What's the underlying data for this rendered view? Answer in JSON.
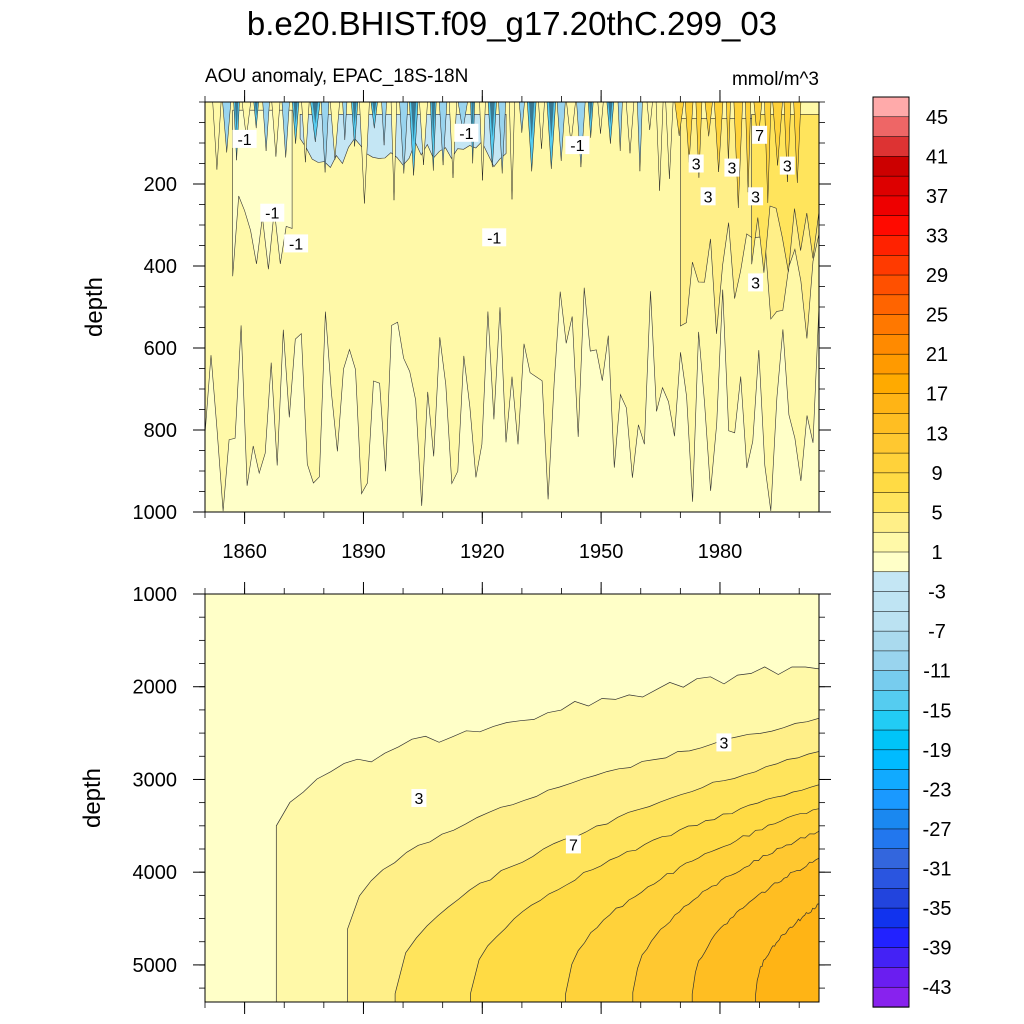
{
  "chart_data": {
    "type": "heatmap",
    "title": "b.e20.BHIST.f09_g17.20thC.299_03",
    "subtitle_left": "AOU anomaly, EPAC_18S-18N",
    "units": "mmol/m^3",
    "xlabel": "",
    "x_range": [
      1850,
      2005
    ],
    "x_ticks": [
      1860,
      1890,
      1920,
      1950,
      1980
    ],
    "x_tick_labels": [
      "1860",
      "1890",
      "1920",
      "1950",
      "1980"
    ],
    "panels": [
      {
        "name": "upper",
        "ylabel": "depth",
        "ylim": [
          0,
          1000
        ],
        "y_ticks": [
          200,
          400,
          600,
          800,
          1000
        ],
        "y_tick_labels": [
          "200",
          "400",
          "600",
          "800",
          "1000"
        ],
        "regions": [
          {
            "level_min": 1,
            "level_max": 3,
            "depth_top": 0,
            "depth_bottom": 1000,
            "year_start": 1850,
            "year_end": 2005
          },
          {
            "level_min": -1,
            "level_max": 1,
            "depth_top": 20,
            "depth_bottom": 440,
            "year_start": 1857,
            "year_end": 1872
          },
          {
            "level_min": -3,
            "level_max": -1,
            "depth_top": 30,
            "depth_bottom": 160,
            "year_start": 1874,
            "year_end": 1926
          },
          {
            "level_min": 3,
            "level_max": 5,
            "depth_top": 40,
            "depth_bottom": 600,
            "year_start": 1970,
            "year_end": 2005
          },
          {
            "level_min": 5,
            "level_max": 7,
            "depth_top": 30,
            "depth_bottom": 420,
            "year_start": 1988,
            "year_end": 2005
          }
        ],
        "contour_labels": [
          {
            "text": "-1",
            "year": 1860,
            "depth": 90
          },
          {
            "text": "-1",
            "year": 1867,
            "depth": 270
          },
          {
            "text": "-1",
            "year": 1873,
            "depth": 345
          },
          {
            "text": "-1",
            "year": 1916,
            "depth": 75
          },
          {
            "text": "-1",
            "year": 1923,
            "depth": 330
          },
          {
            "text": "-1",
            "year": 1944,
            "depth": 105
          },
          {
            "text": "3",
            "year": 1974,
            "depth": 150
          },
          {
            "text": "3",
            "year": 1977,
            "depth": 230
          },
          {
            "text": "3",
            "year": 1983,
            "depth": 160
          },
          {
            "text": "3",
            "year": 1989,
            "depth": 230
          },
          {
            "text": "7",
            "year": 1990,
            "depth": 80
          },
          {
            "text": "3",
            "year": 1997,
            "depth": 155
          },
          {
            "text": "3",
            "year": 1989,
            "depth": 440
          }
        ]
      },
      {
        "name": "lower",
        "ylabel": "depth",
        "ylim": [
          1000,
          5400
        ],
        "y_ticks": [
          1000,
          2000,
          3000,
          4000,
          5000
        ],
        "y_tick_labels": [
          "1000",
          "2000",
          "3000",
          "4000",
          "5000"
        ],
        "contour_bands": [
          {
            "level_min": 1,
            "level_max": 3,
            "onset_year": 1868,
            "surface_depth_start": 3500,
            "surface_depth_end": 1750
          },
          {
            "level_min": 3,
            "level_max": 5,
            "onset_year": 1886,
            "surface_depth_start": 4600,
            "surface_depth_end": 2350
          },
          {
            "level_min": 5,
            "level_max": 7,
            "onset_year": 1898,
            "surface_depth_start": 5300,
            "surface_depth_end": 2700
          },
          {
            "level_min": 7,
            "level_max": 9,
            "onset_year": 1917,
            "surface_depth_start": 5300,
            "surface_depth_end": 3050
          },
          {
            "level_min": 9,
            "level_max": 11,
            "onset_year": 1941,
            "surface_depth_start": 5300,
            "surface_depth_end": 3300
          },
          {
            "level_min": 11,
            "level_max": 13,
            "onset_year": 1958,
            "surface_depth_start": 5300,
            "surface_depth_end": 3550
          },
          {
            "level_min": 13,
            "level_max": 15,
            "onset_year": 1973,
            "surface_depth_start": 5300,
            "surface_depth_end": 3850
          },
          {
            "level_min": 15,
            "level_max": 17,
            "onset_year": 1989,
            "surface_depth_start": 5300,
            "surface_depth_end": 4350
          }
        ],
        "contour_labels": [
          {
            "text": "3",
            "year": 1981,
            "depth": 2600
          },
          {
            "text": "3",
            "year": 1904,
            "depth": 3200
          },
          {
            "text": "7",
            "year": 1943,
            "depth": 3700
          }
        ]
      }
    ],
    "colorbar": {
      "levels": [
        -45,
        -43,
        -41,
        -39,
        -37,
        -35,
        -33,
        -31,
        -29,
        -27,
        -25,
        -23,
        -21,
        -19,
        -17,
        -15,
        -13,
        -11,
        -9,
        -7,
        -5,
        -3,
        -1,
        1,
        3,
        5,
        7,
        9,
        11,
        13,
        15,
        17,
        19,
        21,
        23,
        25,
        27,
        29,
        31,
        33,
        35,
        37,
        39,
        41,
        43,
        45
      ],
      "labels": [
        "45",
        "41",
        "37",
        "33",
        "29",
        "25",
        "21",
        "17",
        "13",
        "9",
        "5",
        "1",
        "-3",
        "-7",
        "-11",
        "-15",
        "-19",
        "-23",
        "-27",
        "-31",
        "-35",
        "-39",
        "-43"
      ],
      "colors": [
        "#8822ee",
        "#6a1ef0",
        "#4422f5",
        "#2222ff",
        "#1133ee",
        "#2244dd",
        "#2a55e0",
        "#3366dd",
        "#2277ee",
        "#1a88f0",
        "#1a99ff",
        "#11aaff",
        "#00bbff",
        "#00c4f8",
        "#22ccf5",
        "#55ccf0",
        "#77ccee",
        "#99d4ee",
        "#aadaee",
        "#bbe2f2",
        "#bfe4f3",
        "#c4e6f4",
        "#ffffc8",
        "#fff9a8",
        "#ffef88",
        "#ffe45c",
        "#ffdb44",
        "#ffd23a",
        "#ffc830",
        "#ffbe22",
        "#ffb415",
        "#ffaa00",
        "#ff9a00",
        "#ff8a00",
        "#ff7800",
        "#ff6400",
        "#ff5000",
        "#ff3a00",
        "#ff2200",
        "#ff0a00",
        "#ee0000",
        "#dd0000",
        "#cc0000",
        "#dd3333",
        "#ee6666",
        "#ffaaaa"
      ]
    }
  }
}
